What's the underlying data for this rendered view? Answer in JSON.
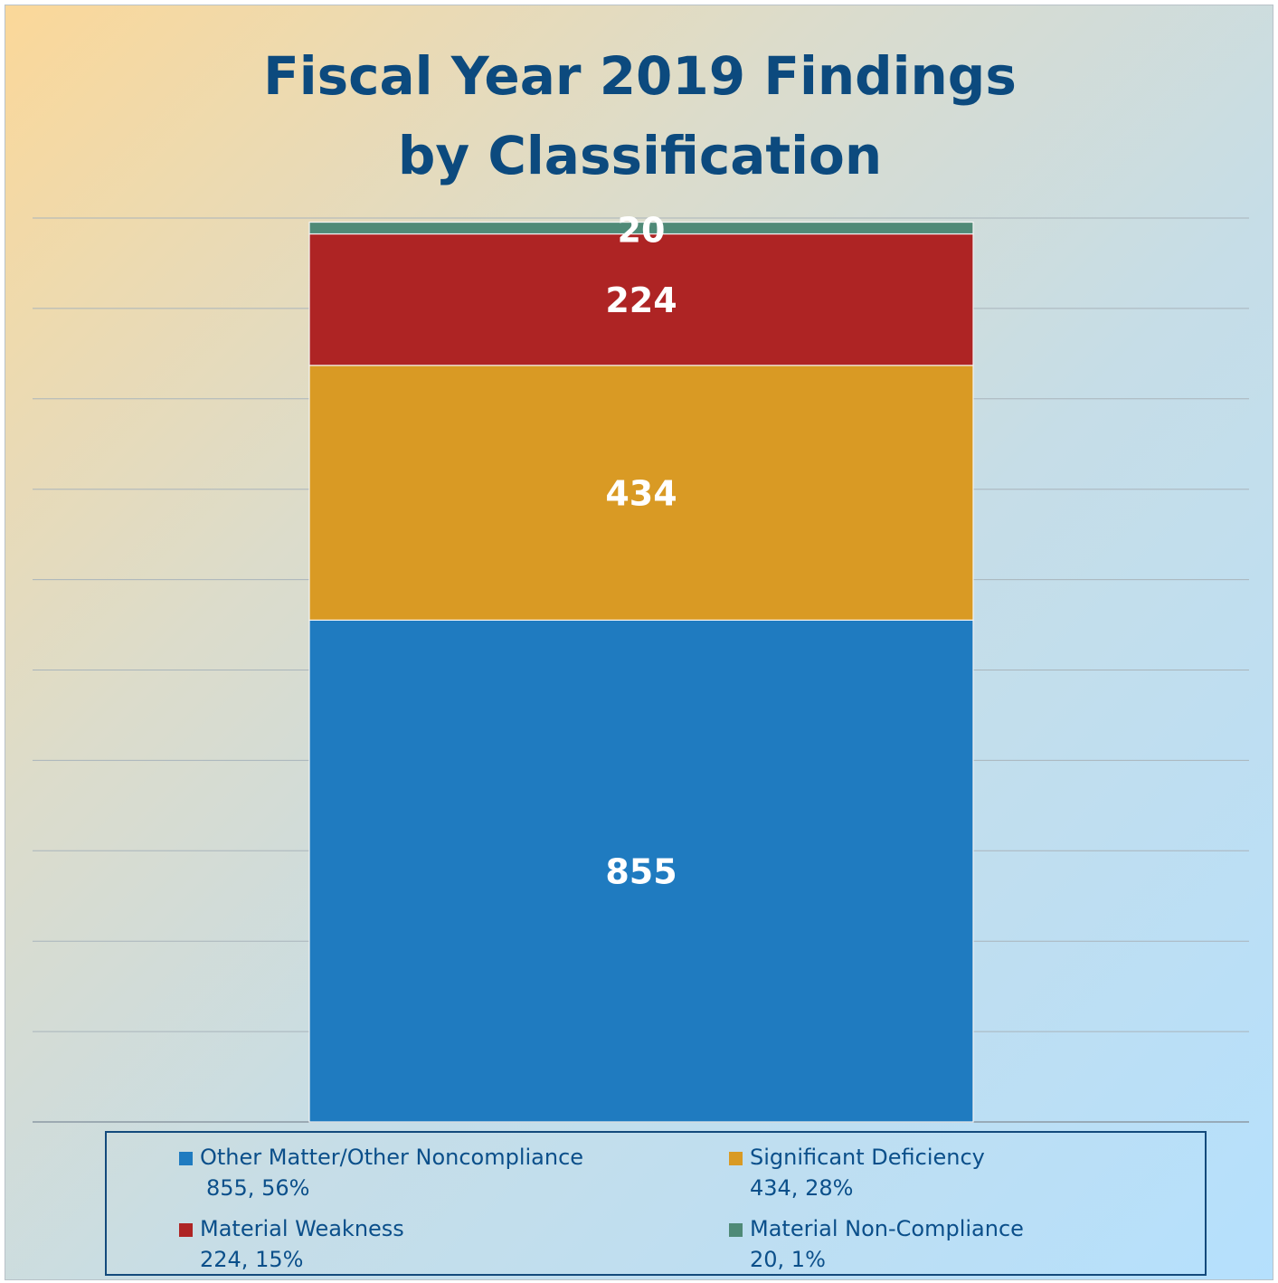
{
  "chart_data": {
    "type": "bar",
    "stacked": true,
    "title": [
      "Fiscal Year 2019 Findings",
      "by Classification"
    ],
    "xlabel": "",
    "ylabel": "",
    "ylim": [
      0,
      1540
    ],
    "grid": true,
    "legend_position": "bottom",
    "series": [
      {
        "name": "Other Matter/Other Noncompliance",
        "value": 855,
        "label": "855",
        "legend_value": "855, 56%",
        "color": "#1f7bc0"
      },
      {
        "name": "Significant Deficiency",
        "value": 434,
        "label": "434",
        "legend_value": "434, 28%",
        "color": "#d99a24"
      },
      {
        "name": "Material Weakness",
        "value": 224,
        "label": "224",
        "legend_value": "224, 15%",
        "color": "#ae2424"
      },
      {
        "name": "Material Non-Compliance",
        "value": 20,
        "label": "20",
        "legend_value": "20, 1%",
        "color": "#4f8a77"
      }
    ]
  }
}
